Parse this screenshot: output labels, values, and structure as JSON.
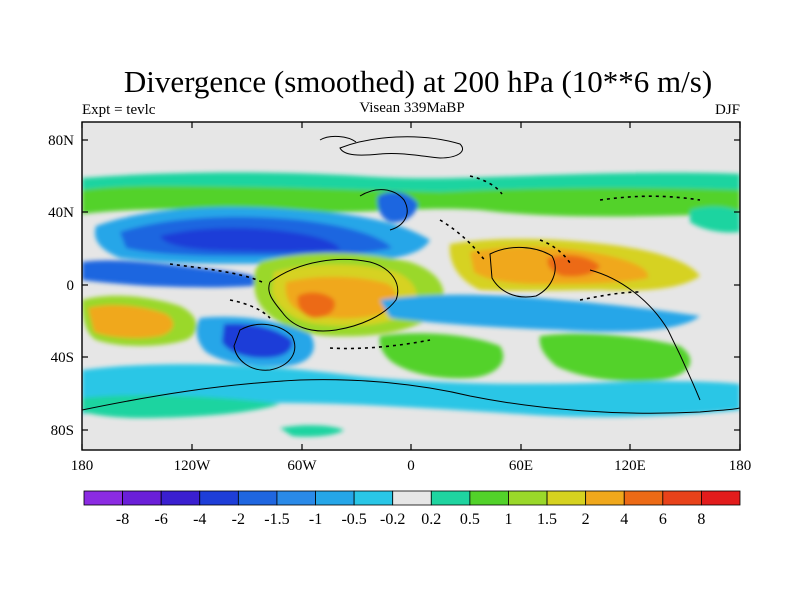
{
  "title": "Divergence (smoothed) at 200 hPa (10**6 m/s)",
  "left_label": "Expt = tevlc",
  "center_label": "Visean 339MaBP",
  "right_label": "DJF",
  "lat_ticks": [
    "80N",
    "40N",
    "0",
    "40S",
    "80S"
  ],
  "lon_ticks": [
    "180",
    "120W",
    "60W",
    "0",
    "60E",
    "120E",
    "180"
  ],
  "colorbar": {
    "labels": [
      "-8",
      "-6",
      "-4",
      "-2",
      "-1.5",
      "-1",
      "-0.5",
      "-0.2",
      "0.2",
      "0.5",
      "1",
      "1.5",
      "2",
      "4",
      "6",
      "8"
    ],
    "colors": [
      "#8b2be2",
      "#6a1fd8",
      "#3a1fd0",
      "#1e3ed8",
      "#1f66e0",
      "#2a8ae8",
      "#25a6e8",
      "#29c6e6",
      "#e6e6e6",
      "#1fd4a0",
      "#52d22a",
      "#9ad82a",
      "#d6d220",
      "#f0a81c",
      "#ec6a16",
      "#e8421a",
      "#e21c1c"
    ]
  },
  "background_color": "#e6e6e6"
}
